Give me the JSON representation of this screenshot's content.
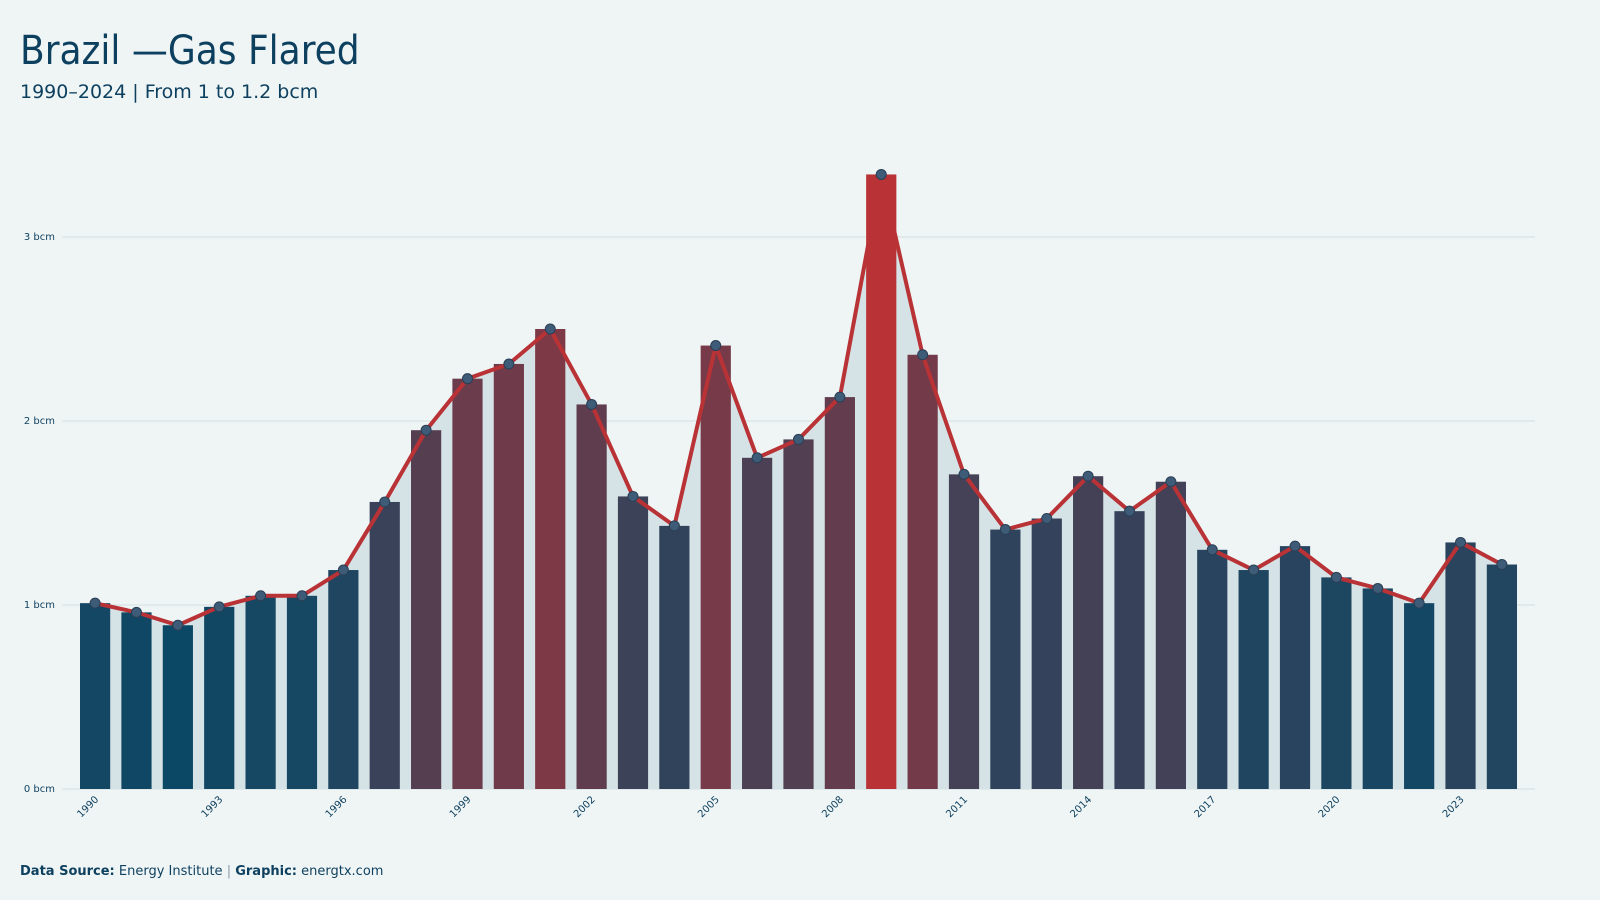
{
  "chart_data": {
    "type": "bar",
    "title": "Brazil —Gas Flared",
    "subtitle": "1990–2024 | From 1 to 1.2 bcm",
    "x": [
      1990,
      1991,
      1992,
      1993,
      1994,
      1995,
      1996,
      1997,
      1998,
      1999,
      2000,
      2001,
      2002,
      2003,
      2004,
      2005,
      2006,
      2007,
      2008,
      2009,
      2010,
      2011,
      2012,
      2013,
      2014,
      2015,
      2016,
      2017,
      2018,
      2019,
      2020,
      2021,
      2022,
      2023,
      2024
    ],
    "values": [
      1.01,
      0.96,
      0.89,
      0.99,
      1.05,
      1.05,
      1.19,
      1.56,
      1.95,
      2.23,
      2.31,
      2.5,
      2.09,
      1.59,
      1.43,
      2.41,
      1.8,
      1.9,
      2.13,
      3.34,
      2.36,
      1.71,
      1.41,
      1.47,
      1.7,
      1.51,
      1.67,
      1.3,
      1.19,
      1.32,
      1.15,
      1.09,
      1.01,
      1.34,
      1.22
    ],
    "xlim": [
      1989.2,
      2024.8
    ],
    "xticks": [
      1990,
      1993,
      1996,
      1999,
      2002,
      2005,
      2008,
      2011,
      2014,
      2017,
      2020,
      2023
    ],
    "ylim": [
      0,
      3.4
    ],
    "yticks": [
      {
        "value": 0,
        "label": "0 bcm"
      },
      {
        "value": 1,
        "label": "1 bcm"
      },
      {
        "value": 2,
        "label": "2 bcm"
      },
      {
        "value": 3,
        "label": "3 bcm"
      }
    ],
    "grid": true,
    "color_low": "#0b4866",
    "color_high": "#b83236",
    "line_color": "#b83236",
    "marker_color": "#3e5b78",
    "area_color": "#d6e3e6"
  },
  "footer": {
    "source_label": "Data Source:",
    "source": "Energy Institute",
    "separator": "|",
    "graphic_label": "Graphic:",
    "graphic": "energtx.com"
  }
}
